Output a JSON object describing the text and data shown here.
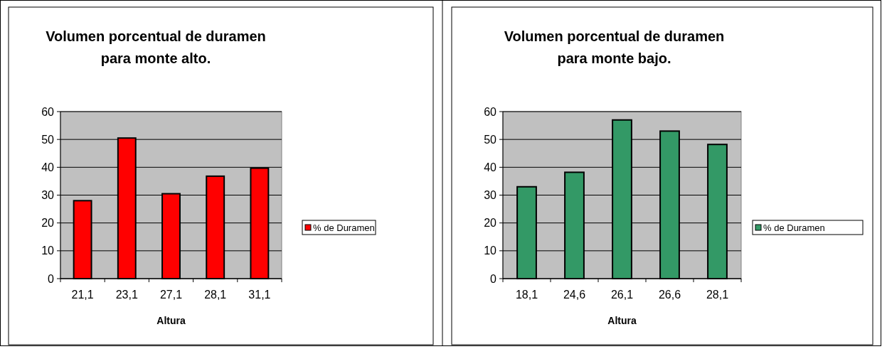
{
  "chart_data": [
    {
      "type": "bar",
      "title": "Volumen porcentual de duramen\npara monte alto.",
      "xlabel": "Altura",
      "categories": [
        "21,1",
        "23,1",
        "27,1",
        "28,1",
        "31,1"
      ],
      "series": [
        {
          "name": "% de Duramen",
          "color": "#ff0000",
          "values": [
            28,
            50.5,
            30.5,
            36.8,
            39.7
          ]
        }
      ],
      "ylim": [
        0,
        60
      ],
      "yticks": [
        0,
        10,
        20,
        30,
        40,
        50,
        60
      ],
      "grid": "y",
      "legend": "right"
    },
    {
      "type": "bar",
      "title": "Volumen porcentual de duramen\npara monte bajo.",
      "xlabel": "Altura",
      "categories": [
        "18,1",
        "24,6",
        "26,1",
        "26,6",
        "28,1"
      ],
      "series": [
        {
          "name": "% de Duramen",
          "color": "#339966",
          "values": [
            33,
            38.2,
            57,
            53,
            48.2
          ]
        }
      ],
      "ylim": [
        0,
        60
      ],
      "yticks": [
        0,
        10,
        20,
        30,
        40,
        50,
        60
      ],
      "grid": "y",
      "legend": "right"
    }
  ]
}
